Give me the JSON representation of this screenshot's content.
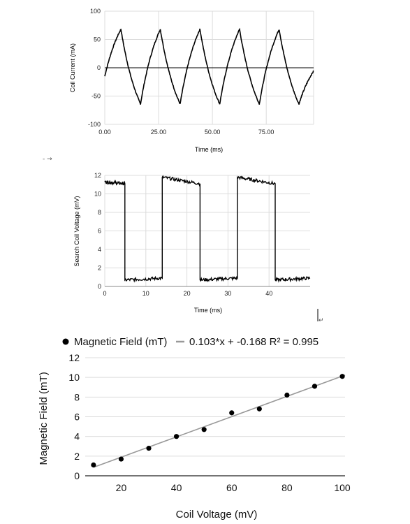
{
  "chart_data": [
    {
      "type": "line",
      "xlabel": "Time (ms)",
      "ylabel": "Coil Current (mA)",
      "xlim": [
        0,
        97
      ],
      "ylim": [
        -100,
        100
      ],
      "xticks": [
        "0.00",
        "25.00",
        "50.00",
        "75.00"
      ],
      "yticks": [
        "100",
        "50",
        "0",
        "-50",
        "-100"
      ],
      "series": [
        {
          "style": "triangle-exponential",
          "period_ms": 18.4,
          "peak_times_ms": [
            7.5,
            25.8,
            44.2,
            62.6,
            81.0
          ],
          "trough_times_ms": [
            16.6,
            35.0,
            53.4,
            71.8,
            90.2
          ],
          "peak_value": 68,
          "trough_value": -64,
          "points": [
            [
              0,
              -15
            ],
            [
              7.5,
              68
            ],
            [
              16.6,
              -64
            ],
            [
              25.8,
              68
            ],
            [
              35.0,
              -64
            ],
            [
              44.2,
              68
            ],
            [
              53.4,
              -64
            ],
            [
              62.6,
              68
            ],
            [
              71.8,
              -64
            ],
            [
              81.0,
              68
            ],
            [
              90.2,
              -64
            ],
            [
              97,
              -6
            ]
          ]
        }
      ]
    },
    {
      "type": "line",
      "xlabel": "Time (ms)",
      "ylabel": "Search Coil Voltage (mV)",
      "xlim": [
        0,
        50
      ],
      "ylim": [
        0,
        12
      ],
      "xticks": [
        "0",
        "10",
        "20",
        "30",
        "40"
      ],
      "yticks": [
        "12",
        "10",
        "8",
        "6",
        "4",
        "2",
        "0"
      ],
      "series": [
        {
          "style": "square-wave",
          "segments": [
            {
              "x_start": 0,
              "x_end": 4.9,
              "y_start": 11.3,
              "y_end": 11.1
            },
            {
              "x_start": 4.9,
              "x_end": 14.0,
              "y_start": 0.7,
              "y_end": 0.9
            },
            {
              "x_start": 14.0,
              "x_end": 23.2,
              "y_start": 11.8,
              "y_end": 11.1
            },
            {
              "x_start": 23.2,
              "x_end": 32.3,
              "y_start": 0.7,
              "y_end": 0.9
            },
            {
              "x_start": 32.3,
              "x_end": 41.5,
              "y_start": 11.8,
              "y_end": 11.1
            },
            {
              "x_start": 41.5,
              "x_end": 50,
              "y_start": 0.7,
              "y_end": 0.9
            }
          ]
        }
      ]
    },
    {
      "type": "scatter",
      "xlabel": "Coil Voltage (mV)",
      "ylabel": "Magnetic Field (mT)",
      "xlim": [
        7,
        101
      ],
      "ylim": [
        0,
        12
      ],
      "xticks": [
        "20",
        "40",
        "60",
        "80",
        "100"
      ],
      "yticks": [
        "12",
        "10",
        "8",
        "6",
        "4",
        "2",
        "0"
      ],
      "legend": {
        "placement": "top",
        "series_label": "Magnetic Field (mT)",
        "trendline_label": "0.103*x + -0.168 R² = 0.995"
      },
      "series": [
        {
          "name": "Magnetic Field (mT)",
          "x": [
            10,
            20,
            30,
            40,
            50,
            60,
            70,
            80,
            90,
            100
          ],
          "y": [
            1.1,
            1.7,
            2.8,
            4.0,
            4.7,
            6.4,
            6.8,
            8.2,
            9.1,
            10.1
          ]
        }
      ],
      "trendline": {
        "slope": 0.103,
        "intercept": -0.168,
        "r2": 0.995,
        "color": "#999999"
      }
    }
  ],
  "stray_marks": {
    "arrow_mark": "- →",
    "return_mark": "↵"
  }
}
